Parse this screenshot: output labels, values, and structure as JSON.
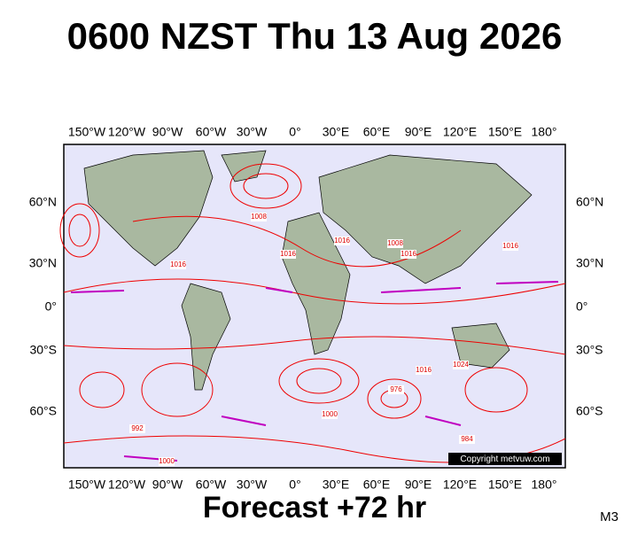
{
  "title": "0600 NZST Thu 13 Aug 2026",
  "map": {
    "top_longitudes": [
      "150°W",
      "120°W",
      "90°W",
      "60°W",
      "30°W",
      "0°",
      "30°E",
      "60°E",
      "90°E",
      "120°E",
      "150°E",
      "180°"
    ],
    "bottom_longitudes": [
      "150°W",
      "120°W",
      "90°W",
      "60°W",
      "30°W",
      "0°",
      "30°E",
      "60°E",
      "90°E",
      "120°E",
      "150°E",
      "180°"
    ],
    "left_latitudes": [
      "60°N",
      "30°N",
      "0°",
      "30°S",
      "60°S"
    ],
    "right_latitudes": [
      "60°N",
      "30°N",
      "0°",
      "30°S",
      "60°S"
    ],
    "isobar_labels": [
      "1008",
      "1016",
      "1016",
      "1016",
      "1008",
      "1016",
      "1016",
      "1016",
      "1024",
      "976",
      "1000",
      "984",
      "992",
      "1000"
    ],
    "copyright": "Copyright metvuw.com"
  },
  "footer": "Forecast +72 hr",
  "model": "M3"
}
